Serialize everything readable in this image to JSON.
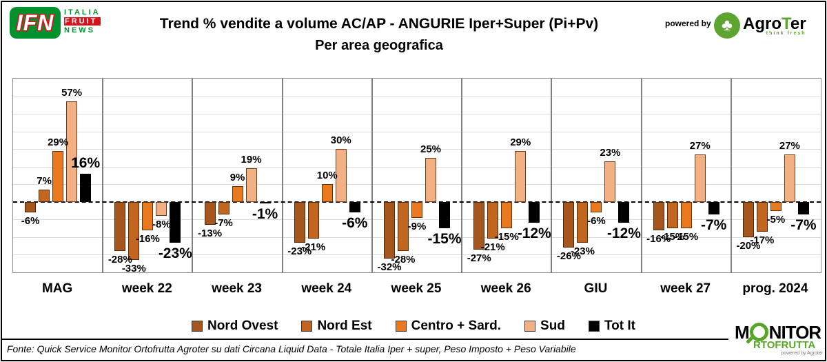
{
  "header": {
    "ifn_logo": {
      "acronym": "IFN",
      "line1": "ITALIA",
      "line2": "FRUIT",
      "line3": "NEWS",
      "green": "#00912F",
      "red": "#D8121A"
    },
    "title_line1": "Trend % vendite a volume AC/AP - ANGURIE  Iper+Super (Pi+Pv)",
    "title_line2": "Per area geografica",
    "powered_by": "powered by",
    "agroter_logo": {
      "tree_icon": "tree-icon",
      "prefix": "Agro",
      "t": "T",
      "suffix": "er",
      "tagline": "think fresh",
      "green": "#5EA430"
    }
  },
  "chart_data": {
    "type": "bar",
    "title": "Trend % vendite a volume AC/AP - ANGURIE  Iper+Super (Pi+Pv)",
    "subtitle": "Per area geografica",
    "categories": [
      "MAG",
      "week 22",
      "week 23",
      "week 24",
      "week 25",
      "week 26",
      "GIU",
      "week 27",
      "prog. 2024"
    ],
    "series": [
      {
        "name": "Nord Ovest",
        "color": "#A6551D",
        "values": [
          -6,
          -28,
          -13,
          -23,
          -32,
          -27,
          -26,
          -16,
          -20
        ]
      },
      {
        "name": "Nord Est",
        "color": "#C2661F",
        "values": [
          7,
          -33,
          -7,
          -21,
          -28,
          -21,
          -23,
          -15,
          -17
        ]
      },
      {
        "name": "Centro + Sard.",
        "color": "#E8791F",
        "values": [
          29,
          -16,
          9,
          10,
          -9,
          -15,
          -6,
          -15,
          -5
        ]
      },
      {
        "name": "Sud",
        "color": "#F2B083",
        "values": [
          57,
          -8,
          19,
          30,
          25,
          29,
          23,
          27,
          27
        ]
      },
      {
        "name": "Tot It",
        "color": "#000000",
        "values": [
          16,
          -23,
          -1,
          -6,
          -15,
          -12,
          -12,
          -7,
          -7
        ]
      }
    ],
    "unit": "%",
    "ylim": [
      -40,
      70
    ],
    "gridline_step": 10,
    "grid": true,
    "zero_line": "dashed",
    "legend_position": "bottom"
  },
  "footer": {
    "fonte": "Fonte: Quick Service Monitor Ortofrutta Agroter su dati Circana Liquid Data - Totale Italia Iper + super, Peso Imposto + Peso Variabile",
    "monitor_logo": {
      "m": "M",
      "nitor": "NITOR",
      "line2": "RTOFRUTTA",
      "powered": "powered by Agroter",
      "green": "#58A528"
    }
  }
}
